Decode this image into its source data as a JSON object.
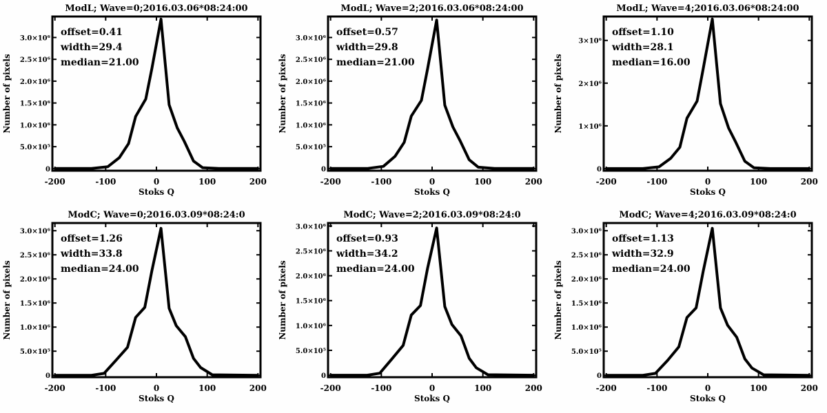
{
  "chart_data": [
    {
      "type": "line",
      "title": "ModL; Wave=0;2016.03.06*08:24:00",
      "xlabel": "Stoks Q",
      "ylabel": "Number of pixels",
      "annotations": [
        "offset=0.41",
        "width=29.4",
        "median=21.00"
      ],
      "xlim": [
        -205,
        205
      ],
      "ylim": [
        -50000,
        3480000
      ],
      "xticks": [
        -200,
        -100,
        0,
        100,
        200
      ],
      "xtick_labels": [
        "-200",
        "-100",
        "0",
        "100",
        "200"
      ],
      "yticks": [
        0,
        500000,
        1000000,
        1500000,
        2000000,
        2500000,
        3000000
      ],
      "ytick_labels": [
        "0",
        "5.0×10⁵",
        "1.0×10⁶",
        "1.5×10⁶",
        "2.0×10⁶",
        "2.5×10⁶",
        "3.0×10⁶"
      ],
      "x": [
        -200,
        -128,
        -96,
        -73,
        -55,
        -41,
        -21,
        -9,
        9,
        25,
        41,
        55,
        73,
        91,
        123,
        200
      ],
      "y": [
        0,
        0,
        40000,
        250000,
        570000,
        1190000,
        1590000,
        2290000,
        3420000,
        1460000,
        930000,
        620000,
        170000,
        20000,
        0,
        0
      ]
    },
    {
      "type": "line",
      "title": "ModL; Wave=2;2016.03.06*08:24:00",
      "xlabel": "Stoks Q",
      "ylabel": "Number of pixels",
      "annotations": [
        "offset=0.57",
        "width=29.8",
        "median=21.00"
      ],
      "xlim": [
        -205,
        205
      ],
      "ylim": [
        -50000,
        3480000
      ],
      "xticks": [
        -200,
        -100,
        0,
        100,
        200
      ],
      "xtick_labels": [
        "-200",
        "-100",
        "0",
        "100",
        "200"
      ],
      "yticks": [
        0,
        500000,
        1000000,
        1500000,
        2000000,
        2500000,
        3000000
      ],
      "ytick_labels": [
        "0",
        "5.0×10⁵",
        "1.0×10⁶",
        "1.5×10⁶",
        "2.0×10⁶",
        "2.5×10⁶",
        "3.0×10⁶"
      ],
      "x": [
        -200,
        -128,
        -96,
        -73,
        -55,
        -41,
        -21,
        -9,
        9,
        25,
        41,
        55,
        73,
        91,
        123,
        200
      ],
      "y": [
        0,
        0,
        50000,
        280000,
        600000,
        1200000,
        1560000,
        2280000,
        3400000,
        1450000,
        950000,
        640000,
        200000,
        30000,
        0,
        0
      ]
    },
    {
      "type": "line",
      "title": "ModL; Wave=4;2016.03.06*08:24:00",
      "xlabel": "Stoks Q",
      "ylabel": "Number of pixels",
      "annotations": [
        "offset=1.10",
        "width=28.1",
        "median=16.00"
      ],
      "xlim": [
        -205,
        205
      ],
      "ylim": [
        -50000,
        3560000
      ],
      "xticks": [
        -200,
        -100,
        0,
        100,
        200
      ],
      "xtick_labels": [
        "-200",
        "-100",
        "0",
        "100",
        "200"
      ],
      "yticks": [
        0,
        1000000,
        2000000,
        3000000
      ],
      "ytick_labels": [
        "0",
        "1×10⁶",
        "2×10⁶",
        "3×10⁶"
      ],
      "x": [
        -200,
        -128,
        -96,
        -73,
        -55,
        -41,
        -21,
        -9,
        9,
        25,
        41,
        55,
        73,
        91,
        123,
        200
      ],
      "y": [
        0,
        0,
        40000,
        240000,
        500000,
        1180000,
        1580000,
        2340000,
        3500000,
        1520000,
        950000,
        620000,
        170000,
        20000,
        0,
        0
      ]
    },
    {
      "type": "line",
      "title": "ModC; Wave=0;2016.03.09*08:24:0",
      "xlabel": "Stoks Q",
      "ylabel": "Number of pixels",
      "annotations": [
        "offset=1.26",
        "width=33.8",
        "median=24.00"
      ],
      "xlim": [
        -205,
        205
      ],
      "ylim": [
        -40000,
        3160000
      ],
      "xticks": [
        -200,
        -100,
        0,
        100,
        200
      ],
      "xtick_labels": [
        "-200",
        "-100",
        "0",
        "100",
        "200"
      ],
      "yticks": [
        0,
        500000,
        1000000,
        1500000,
        2000000,
        2500000,
        3000000
      ],
      "ytick_labels": [
        "0",
        "5.0×10⁵",
        "1.0×10⁶",
        "1.5×10⁶",
        "2.0×10⁶",
        "2.5×10⁶",
        "3.0×10⁶"
      ],
      "x": [
        -200,
        -128,
        -103,
        -79,
        -57,
        -41,
        -23,
        -9,
        9,
        25,
        39,
        57,
        73,
        87,
        110,
        200
      ],
      "y": [
        0,
        0,
        40000,
        320000,
        580000,
        1200000,
        1410000,
        2170000,
        3050000,
        1390000,
        1030000,
        800000,
        350000,
        160000,
        10000,
        0
      ]
    },
    {
      "type": "line",
      "title": "ModC; Wave=2;2016.03.09*08:24:0",
      "xlabel": "Stoks Q",
      "ylabel": "Number of pixels",
      "annotations": [
        "offset=0.93",
        "width=34.2",
        "median=24.00"
      ],
      "xlim": [
        -205,
        205
      ],
      "ylim": [
        -40000,
        3060000
      ],
      "xticks": [
        -200,
        -100,
        0,
        100,
        200
      ],
      "xtick_labels": [
        "-200",
        "-100",
        "0",
        "100",
        "200"
      ],
      "yticks": [
        0,
        500000,
        1000000,
        1500000,
        2000000,
        2500000,
        3000000
      ],
      "ytick_labels": [
        "0",
        "5.0×10⁵",
        "1.0×10⁶",
        "1.5×10⁶",
        "2.0×10⁶",
        "2.5×10⁶",
        "3.0×10⁶"
      ],
      "x": [
        -200,
        -128,
        -103,
        -79,
        -57,
        -41,
        -23,
        -9,
        9,
        25,
        39,
        57,
        73,
        87,
        110,
        200
      ],
      "y": [
        0,
        0,
        40000,
        330000,
        600000,
        1210000,
        1400000,
        2150000,
        2960000,
        1380000,
        1020000,
        790000,
        340000,
        150000,
        10000,
        0
      ]
    },
    {
      "type": "line",
      "title": "ModC; Wave=4;2016.03.09*08:24:0",
      "xlabel": "Stoks Q",
      "ylabel": "Number of pixels",
      "annotations": [
        "offset=1.13",
        "width=32.9",
        "median=24.00"
      ],
      "xlim": [
        -205,
        205
      ],
      "ylim": [
        -40000,
        3160000
      ],
      "xticks": [
        -200,
        -100,
        0,
        100,
        200
      ],
      "xtick_labels": [
        "-200",
        "-100",
        "0",
        "100",
        "200"
      ],
      "yticks": [
        0,
        500000,
        1000000,
        1500000,
        2000000,
        2500000,
        3000000
      ],
      "ytick_labels": [
        "0",
        "5.0×10⁵",
        "1.0×10⁶",
        "1.5×10⁶",
        "2.0×10⁶",
        "2.5×10⁶",
        "3.0×10⁶"
      ],
      "x": [
        -200,
        -128,
        -103,
        -79,
        -57,
        -41,
        -23,
        -9,
        9,
        25,
        39,
        57,
        73,
        87,
        110,
        200
      ],
      "y": [
        0,
        0,
        40000,
        310000,
        590000,
        1200000,
        1400000,
        2160000,
        3050000,
        1400000,
        1040000,
        790000,
        340000,
        150000,
        10000,
        0
      ]
    }
  ]
}
